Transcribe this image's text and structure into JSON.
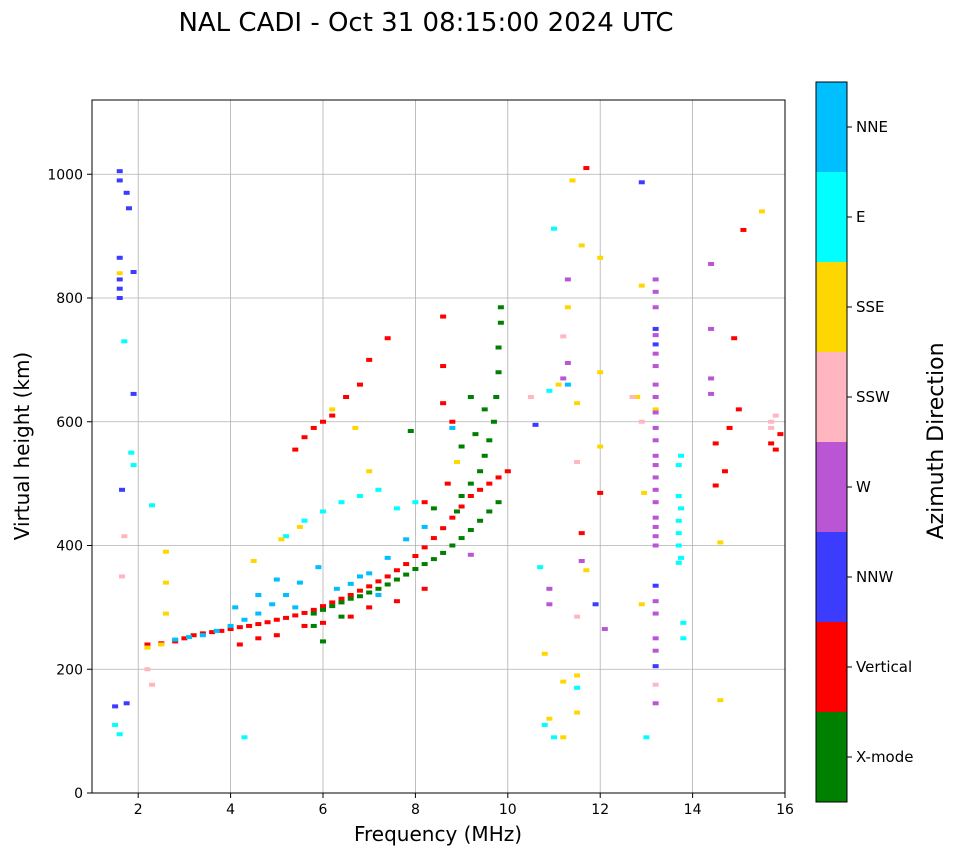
{
  "chart_data": {
    "type": "scatter",
    "title": "NAL CADI - Oct 31 08:15:00 2024 UTC",
    "xlabel": "Frequency (MHz)",
    "ylabel": "Virtual height (km)",
    "xlim": [
      1,
      16
    ],
    "ylim": [
      0,
      1120
    ],
    "xticks": [
      2,
      4,
      6,
      8,
      10,
      12,
      14,
      16
    ],
    "yticks": [
      0,
      200,
      400,
      600,
      800,
      1000
    ],
    "grid": true,
    "colorbar": {
      "title": "Azimuth Direction",
      "position": "right",
      "categories": [
        {
          "name": "NNE",
          "color": "#00bfff"
        },
        {
          "name": "E",
          "color": "#00ffff"
        },
        {
          "name": "SSE",
          "color": "#ffd700"
        },
        {
          "name": "SSW",
          "color": "#ffb6c1"
        },
        {
          "name": "W",
          "color": "#ba55d3"
        },
        {
          "name": "NNW",
          "color": "#3c3cff"
        },
        {
          "name": "Vertical",
          "color": "#ff0000"
        },
        {
          "name": "X-mode",
          "color": "#008000"
        }
      ]
    },
    "series": [
      {
        "name": "Vertical",
        "points": [
          [
            2.2,
            240
          ],
          [
            2.5,
            242
          ],
          [
            2.8,
            245
          ],
          [
            3.0,
            250
          ],
          [
            3.2,
            255
          ],
          [
            3.4,
            258
          ],
          [
            3.6,
            260
          ],
          [
            3.8,
            262
          ],
          [
            4.0,
            265
          ],
          [
            4.2,
            268
          ],
          [
            4.4,
            270
          ],
          [
            4.6,
            273
          ],
          [
            4.8,
            276
          ],
          [
            5.0,
            280
          ],
          [
            5.2,
            283
          ],
          [
            5.4,
            287
          ],
          [
            5.6,
            291
          ],
          [
            5.8,
            296
          ],
          [
            6.0,
            302
          ],
          [
            6.2,
            308
          ],
          [
            6.4,
            314
          ],
          [
            6.6,
            320
          ],
          [
            6.8,
            327
          ],
          [
            7.0,
            334
          ],
          [
            7.2,
            342
          ],
          [
            7.4,
            350
          ],
          [
            7.6,
            360
          ],
          [
            7.8,
            370
          ],
          [
            8.0,
            383
          ],
          [
            8.2,
            397
          ],
          [
            8.4,
            412
          ],
          [
            8.6,
            428
          ],
          [
            8.8,
            445
          ],
          [
            9.0,
            463
          ],
          [
            9.2,
            480
          ],
          [
            9.4,
            490
          ],
          [
            9.6,
            500
          ],
          [
            9.8,
            510
          ],
          [
            10.0,
            520
          ],
          [
            4.2,
            240
          ],
          [
            4.6,
            250
          ],
          [
            5.0,
            255
          ],
          [
            5.6,
            270
          ],
          [
            6.0,
            275
          ],
          [
            6.6,
            285
          ],
          [
            7.0,
            300
          ],
          [
            7.6,
            310
          ],
          [
            8.2,
            330
          ],
          [
            5.4,
            555
          ],
          [
            5.6,
            575
          ],
          [
            5.8,
            590
          ],
          [
            6.0,
            600
          ],
          [
            6.2,
            610
          ],
          [
            6.5,
            640
          ],
          [
            6.8,
            660
          ],
          [
            7.0,
            700
          ],
          [
            7.4,
            735
          ],
          [
            8.6,
            770
          ],
          [
            8.6,
            690
          ],
          [
            8.6,
            630
          ],
          [
            8.8,
            600
          ],
          [
            8.7,
            500
          ],
          [
            8.2,
            470
          ],
          [
            11.7,
            1010
          ],
          [
            14.9,
            735
          ],
          [
            15.1,
            910
          ],
          [
            11.6,
            420
          ],
          [
            12.0,
            485
          ],
          [
            14.5,
            565
          ],
          [
            14.8,
            590
          ],
          [
            15.0,
            620
          ],
          [
            14.7,
            520
          ],
          [
            14.5,
            497
          ],
          [
            15.8,
            555
          ],
          [
            15.7,
            565
          ],
          [
            15.9,
            580
          ]
        ]
      },
      {
        "name": "X-mode",
        "points": [
          [
            5.8,
            290
          ],
          [
            6.0,
            296
          ],
          [
            6.2,
            302
          ],
          [
            6.4,
            308
          ],
          [
            6.6,
            314
          ],
          [
            6.8,
            318
          ],
          [
            7.0,
            324
          ],
          [
            7.2,
            330
          ],
          [
            7.4,
            337
          ],
          [
            7.6,
            345
          ],
          [
            7.8,
            353
          ],
          [
            8.0,
            362
          ],
          [
            8.2,
            370
          ],
          [
            8.4,
            378
          ],
          [
            8.6,
            388
          ],
          [
            8.8,
            400
          ],
          [
            9.0,
            412
          ],
          [
            9.2,
            425
          ],
          [
            9.4,
            440
          ],
          [
            9.6,
            455
          ],
          [
            9.8,
            470
          ],
          [
            9.0,
            480
          ],
          [
            9.2,
            500
          ],
          [
            9.4,
            520
          ],
          [
            9.5,
            545
          ],
          [
            9.6,
            570
          ],
          [
            9.7,
            600
          ],
          [
            9.75,
            640
          ],
          [
            9.8,
            680
          ],
          [
            9.8,
            720
          ],
          [
            9.85,
            760
          ],
          [
            9.85,
            785
          ],
          [
            9.0,
            560
          ],
          [
            9.3,
            580
          ],
          [
            9.5,
            620
          ],
          [
            9.2,
            640
          ],
          [
            7.9,
            585
          ],
          [
            8.9,
            455
          ],
          [
            8.4,
            460
          ],
          [
            6.0,
            245
          ],
          [
            5.8,
            270
          ],
          [
            6.4,
            285
          ]
        ]
      },
      {
        "name": "NNE",
        "points": [
          [
            2.8,
            248
          ],
          [
            3.1,
            252
          ],
          [
            3.4,
            255
          ],
          [
            3.7,
            262
          ],
          [
            4.0,
            270
          ],
          [
            4.3,
            280
          ],
          [
            4.6,
            290
          ],
          [
            4.9,
            305
          ],
          [
            5.2,
            320
          ],
          [
            5.5,
            340
          ],
          [
            5.9,
            365
          ],
          [
            6.3,
            330
          ],
          [
            6.6,
            338
          ],
          [
            7.0,
            355
          ],
          [
            7.4,
            380
          ],
          [
            7.8,
            410
          ],
          [
            8.2,
            430
          ],
          [
            8.8,
            590
          ],
          [
            11.3,
            660
          ],
          [
            4.1,
            300
          ],
          [
            4.6,
            320
          ],
          [
            5.0,
            345
          ],
          [
            5.4,
            300
          ],
          [
            6.8,
            350
          ],
          [
            7.2,
            320
          ]
        ]
      },
      {
        "name": "E",
        "points": [
          [
            1.5,
            110
          ],
          [
            1.6,
            95
          ],
          [
            1.7,
            730
          ],
          [
            1.85,
            550
          ],
          [
            1.9,
            530
          ],
          [
            2.3,
            465
          ],
          [
            4.3,
            90
          ],
          [
            5.2,
            415
          ],
          [
            5.6,
            440
          ],
          [
            6.0,
            455
          ],
          [
            6.4,
            470
          ],
          [
            6.8,
            480
          ],
          [
            7.2,
            490
          ],
          [
            7.6,
            460
          ],
          [
            8.0,
            470
          ],
          [
            10.7,
            365
          ],
          [
            10.9,
            650
          ],
          [
            11.0,
            90
          ],
          [
            13.8,
            250
          ],
          [
            13.8,
            275
          ],
          [
            13.7,
            480
          ],
          [
            13.75,
            460
          ],
          [
            13.7,
            440
          ],
          [
            13.7,
            420
          ],
          [
            13.7,
            400
          ],
          [
            13.75,
            380
          ],
          [
            13.7,
            372
          ],
          [
            13.75,
            545
          ],
          [
            13.7,
            530
          ],
          [
            11.5,
            170
          ],
          [
            10.8,
            110
          ],
          [
            11.0,
            912
          ],
          [
            13.0,
            90
          ]
        ]
      },
      {
        "name": "SSE",
        "points": [
          [
            1.6,
            840
          ],
          [
            2.2,
            235
          ],
          [
            2.5,
            240
          ],
          [
            2.6,
            390
          ],
          [
            2.6,
            340
          ],
          [
            2.6,
            290
          ],
          [
            4.5,
            375
          ],
          [
            5.1,
            410
          ],
          [
            5.5,
            430
          ],
          [
            6.2,
            620
          ],
          [
            6.7,
            590
          ],
          [
            7.0,
            520
          ],
          [
            8.9,
            535
          ],
          [
            11.1,
            660
          ],
          [
            11.2,
            180
          ],
          [
            11.2,
            90
          ],
          [
            11.3,
            785
          ],
          [
            11.4,
            990
          ],
          [
            11.5,
            630
          ],
          [
            11.6,
            885
          ],
          [
            11.7,
            360
          ],
          [
            12.0,
            865
          ],
          [
            12.0,
            680
          ],
          [
            12.0,
            560
          ],
          [
            12.9,
            305
          ],
          [
            12.95,
            485
          ],
          [
            12.9,
            820
          ],
          [
            13.2,
            620
          ],
          [
            14.6,
            150
          ],
          [
            14.6,
            405
          ],
          [
            15.5,
            940
          ],
          [
            10.8,
            225
          ],
          [
            10.9,
            120
          ],
          [
            11.5,
            130
          ],
          [
            11.5,
            190
          ],
          [
            12.8,
            640
          ]
        ]
      },
      {
        "name": "SSW",
        "points": [
          [
            1.65,
            350
          ],
          [
            1.7,
            415
          ],
          [
            2.2,
            200
          ],
          [
            2.3,
            175
          ],
          [
            10.5,
            640
          ],
          [
            11.2,
            738
          ],
          [
            11.5,
            535
          ],
          [
            11.5,
            285
          ],
          [
            12.7,
            640
          ],
          [
            12.9,
            600
          ],
          [
            13.2,
            175
          ],
          [
            15.7,
            600
          ],
          [
            15.8,
            610
          ],
          [
            15.7,
            590
          ]
        ]
      },
      {
        "name": "W",
        "points": [
          [
            10.9,
            330
          ],
          [
            10.9,
            305
          ],
          [
            11.3,
            830
          ],
          [
            11.3,
            695
          ],
          [
            11.2,
            670
          ],
          [
            11.6,
            375
          ],
          [
            12.1,
            265
          ],
          [
            13.2,
            830
          ],
          [
            13.2,
            810
          ],
          [
            13.2,
            785
          ],
          [
            13.2,
            740
          ],
          [
            13.2,
            710
          ],
          [
            13.2,
            690
          ],
          [
            13.2,
            660
          ],
          [
            13.2,
            640
          ],
          [
            13.2,
            615
          ],
          [
            13.2,
            590
          ],
          [
            13.2,
            570
          ],
          [
            13.2,
            545
          ],
          [
            13.2,
            530
          ],
          [
            13.2,
            510
          ],
          [
            13.2,
            490
          ],
          [
            13.2,
            470
          ],
          [
            13.2,
            445
          ],
          [
            13.2,
            430
          ],
          [
            13.2,
            415
          ],
          [
            13.2,
            400
          ],
          [
            13.2,
            310
          ],
          [
            13.2,
            290
          ],
          [
            13.2,
            250
          ],
          [
            13.2,
            230
          ],
          [
            13.2,
            145
          ],
          [
            14.4,
            855
          ],
          [
            14.4,
            750
          ],
          [
            14.4,
            670
          ],
          [
            14.4,
            645
          ],
          [
            9.2,
            385
          ]
        ]
      },
      {
        "name": "NNW",
        "points": [
          [
            1.6,
            1005
          ],
          [
            1.6,
            990
          ],
          [
            1.6,
            865
          ],
          [
            1.6,
            830
          ],
          [
            1.6,
            815
          ],
          [
            1.6,
            800
          ],
          [
            1.75,
            970
          ],
          [
            1.8,
            945
          ],
          [
            1.9,
            842
          ],
          [
            1.9,
            645
          ],
          [
            1.75,
            145
          ],
          [
            1.5,
            140
          ],
          [
            1.65,
            490
          ],
          [
            10.6,
            595
          ],
          [
            11.9,
            305
          ],
          [
            12.9,
            987
          ],
          [
            13.2,
            750
          ],
          [
            13.2,
            725
          ],
          [
            13.2,
            335
          ],
          [
            13.2,
            205
          ]
        ]
      }
    ]
  }
}
